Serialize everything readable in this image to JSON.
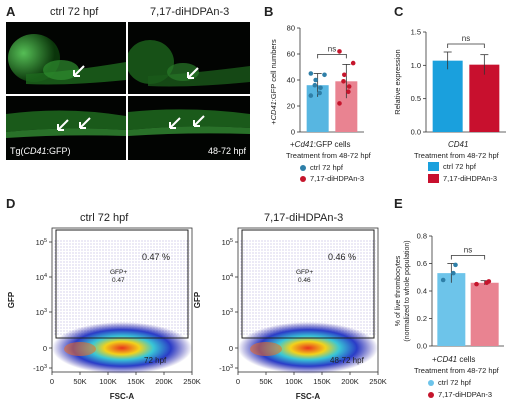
{
  "panels": {
    "A": {
      "label": "A",
      "col_left": "ctrl 72 hpf",
      "col_right": "7,17-diHDPAn-3",
      "line_prefix": "Tg(",
      "line_italic": "CD41",
      "line_suffix": ":GFP)",
      "treatment": "48-72 hpf"
    },
    "D": {
      "label": "D",
      "left_title": "ctrl 72 hpf",
      "right_title": "7,17-diHDPAn-3",
      "left_percent": "0.47 %",
      "right_percent": "0.46 %",
      "left_gate_name": "GFP+",
      "left_gate_value": "0.47",
      "right_gate_name": "GFP+",
      "right_gate_value": "0.46",
      "left_bottom": "72 hpf",
      "right_bottom": "48-72 hpf",
      "xlabel": "FSC-A",
      "ylabel": "GFP",
      "xticks": [
        "0",
        "50K",
        "100K",
        "150K",
        "200K",
        "250K"
      ],
      "yticks": [
        "10^5",
        "10^4",
        "10^3",
        "0",
        "-10^3"
      ],
      "ytick_base": [
        "10",
        "10",
        "10",
        "0",
        "-10"
      ],
      "ytick_exp": [
        "5",
        "4",
        "3",
        "",
        "3"
      ]
    }
  },
  "chart_data": [
    {
      "id": "B",
      "label": "B",
      "type": "bar",
      "ylabel_italic": "CD41",
      "ylabel_suffix": ":GFP cell numbers",
      "ylabel_prefix": "+",
      "xlabel_prefix": "+",
      "xlabel_italic": "Cd41",
      "xlabel_suffix": ":GFP cells",
      "treatment": "Treatment from 48-72 hpf",
      "significance": "ns",
      "yticks": [
        0,
        20,
        40,
        60,
        80
      ],
      "ylim": [
        0,
        80
      ],
      "series": [
        {
          "name": "ctrl 72 hpf",
          "value": 36,
          "error": 9,
          "color": "#57b6e1",
          "dot_color": "#2e7fa8",
          "points": [
            28,
            30,
            34,
            36,
            40,
            44,
            45
          ]
        },
        {
          "name": "7,17-diHDPAn-3",
          "value": 39,
          "error": 13,
          "color": "#e98391",
          "dot_color": "#c5152c",
          "points": [
            22,
            31,
            35,
            39,
            44,
            53,
            62
          ]
        }
      ]
    },
    {
      "id": "C",
      "label": "C",
      "type": "bar",
      "ylabel": "Relative expression",
      "xlabel_italic": "CD41",
      "treatment": "Treatment from 48-72 hpf",
      "significance": "ns",
      "yticks": [
        "0.0",
        "0.5",
        "1.0",
        "1.5"
      ],
      "ylim": [
        0,
        1.5
      ],
      "series": [
        {
          "name": "ctrl 72 hpf",
          "value": 1.07,
          "error": 0.13,
          "color": "#1aa0dd"
        },
        {
          "name": "7,17-diHDPAn-3",
          "value": 1.01,
          "error": 0.15,
          "color": "#c8102e"
        }
      ]
    },
    {
      "id": "E",
      "label": "E",
      "type": "bar",
      "ylabel_line1": "% of live thrombocytes",
      "ylabel_line2": "(normalized to whole population)",
      "xlabel_prefix": "+",
      "xlabel_italic": "CD41",
      "xlabel_suffix": " cells",
      "treatment": "Treatment from 48-72 hpf",
      "significance": "ns",
      "yticks": [
        "0.0",
        "0.2",
        "0.4",
        "0.6",
        "0.8"
      ],
      "ylim": [
        0,
        0.8
      ],
      "series": [
        {
          "name": "ctrl 72 hpf",
          "value": 0.53,
          "error": 0.07,
          "color": "#6dc4ea",
          "dot_color": "#2e7fa8",
          "points": [
            0.48,
            0.53,
            0.59
          ]
        },
        {
          "name": "7,17-diHDPAn-3",
          "value": 0.46,
          "error": 0.015,
          "color": "#e98391",
          "dot_color": "#c5152c",
          "points": [
            0.45,
            0.46,
            0.47
          ]
        }
      ]
    }
  ]
}
